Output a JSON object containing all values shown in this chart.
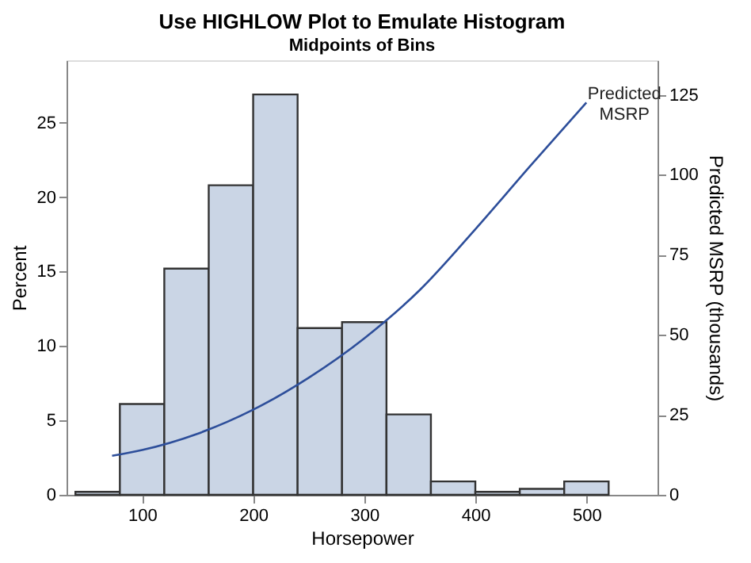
{
  "chart_data": {
    "type": "histogram",
    "title": "Use HIGHLOW Plot to Emulate Histogram",
    "subtitle": "Midpoints of Bins",
    "xlabel": "Horsepower",
    "ylabel": "Percent",
    "y2label": "Predicted MSRP (thousands)",
    "bins": [
      40,
      80,
      120,
      160,
      200,
      240,
      280,
      320,
      360,
      400,
      440,
      480,
      520
    ],
    "series": [
      {
        "color": "#cad5e5",
        "values": [
          0.2,
          6.1,
          15.2,
          20.8,
          26.9,
          11.2,
          11.6,
          5.4,
          0.9,
          0.2,
          0.4,
          0.9
        ]
      },
      {
        "type": "line",
        "name": "Predicted MSRP",
        "axis": "y2",
        "color": "#2d4e9a",
        "x": [
          73,
          100,
          150,
          200,
          250,
          300,
          350,
          400,
          450,
          500
        ],
        "values": [
          12.2,
          14,
          19.1,
          26.6,
          36.6,
          48.9,
          64,
          83,
          103,
          122.6
        ]
      }
    ],
    "xlim": [
      32,
      564
    ],
    "xticks": [
      100,
      200,
      300,
      400,
      500
    ],
    "ylim": [
      0,
      29.2
    ],
    "yticks": [
      0,
      5,
      10,
      15,
      20,
      25
    ],
    "y2lim": [
      0,
      135.8
    ],
    "y2ticks": [
      0,
      25,
      50,
      75,
      100,
      125
    ],
    "grid": false
  }
}
